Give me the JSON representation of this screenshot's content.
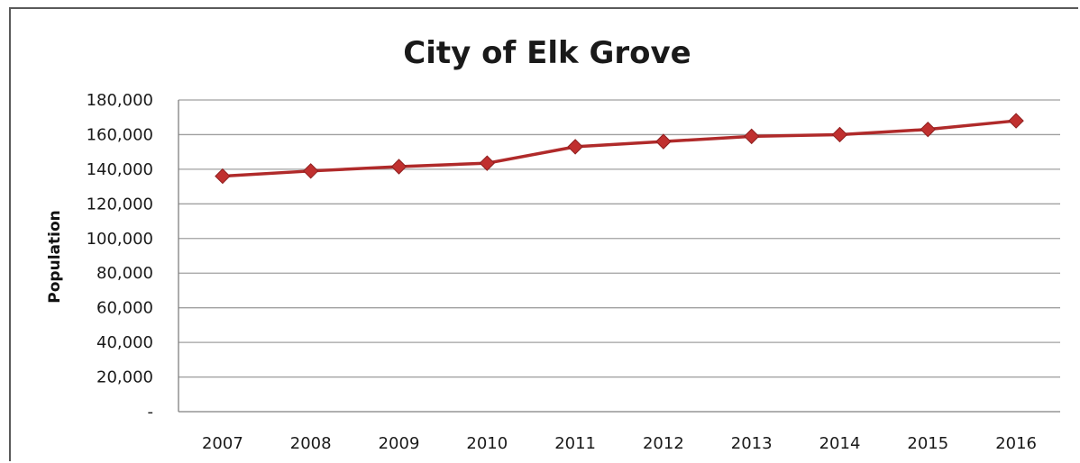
{
  "chart_data": {
    "type": "line",
    "title": "City of Elk Grove",
    "xlabel": "",
    "ylabel": "Population",
    "categories": [
      "2007",
      "2008",
      "2009",
      "2010",
      "2011",
      "2012",
      "2013",
      "2014",
      "2015",
      "2016"
    ],
    "series": [
      {
        "values": [
          136000,
          139000,
          141500,
          143500,
          153000,
          156000,
          159000,
          160000,
          163000,
          168000
        ]
      }
    ],
    "ylim": [
      0,
      180000
    ],
    "yticks": [
      0,
      20000,
      40000,
      60000,
      80000,
      100000,
      120000,
      140000,
      160000,
      180000
    ],
    "ytick_labels": [
      "-",
      "20,000",
      "40,000",
      "60,000",
      "80,000",
      "100,000",
      "120,000",
      "140,000",
      "160,000",
      "180,000"
    ],
    "grid": true,
    "legend": "none",
    "colors": {
      "line": "#b02a2a",
      "marker": "#c0302f",
      "grid": "#a0a0a0",
      "axis": "#808080"
    }
  }
}
